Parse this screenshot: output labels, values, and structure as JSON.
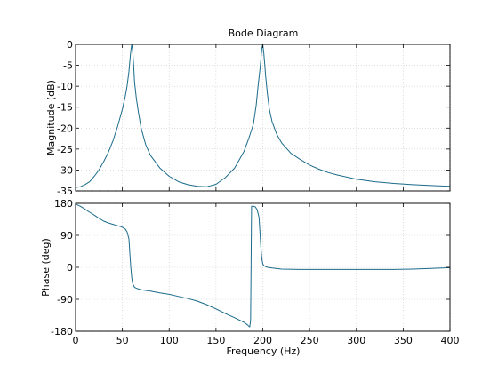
{
  "chart_data": {
    "type": "line",
    "title": "Bode Diagram",
    "xlabel": "Frequency  (Hz)",
    "xlim": [
      0,
      400
    ],
    "x_ticks": [
      0,
      50,
      100,
      150,
      200,
      250,
      300,
      350,
      400
    ],
    "x_tick_labels": [
      "0",
      "50",
      "100",
      "150",
      "200",
      "250",
      "300",
      "350",
      "400"
    ],
    "grid": true,
    "line_color": "#1a6b8a",
    "subplots": [
      {
        "ylabel": "Magnitude (dB)",
        "ylim": [
          -35,
          0
        ],
        "y_ticks": [
          0,
          -5,
          -10,
          -15,
          -20,
          -25,
          -30,
          -35
        ],
        "y_tick_labels": [
          "0",
          "-5",
          "-10",
          "-15",
          "-20",
          "-25",
          "-30",
          "-35"
        ],
        "series": [
          {
            "x": [
              0,
              5,
              10,
              15,
              20,
              25,
              30,
              35,
              40,
              45,
              50,
              53,
              55,
              57,
              58,
              59,
              60,
              61,
              62,
              63,
              65,
              67,
              70,
              75,
              80,
              90,
              100,
              110,
              120,
              130,
              140,
              150,
              160,
              170,
              180,
              185,
              190,
              193,
              195,
              197,
              198,
              199,
              200,
              201,
              202,
              203,
              205,
              207,
              210,
              215,
              220,
              230,
              240,
              250,
              260,
              270,
              280,
              300,
              320,
              340,
              360,
              380,
              400
            ],
            "y": [
              -34.2,
              -34.0,
              -33.5,
              -32.8,
              -31.5,
              -30.0,
              -28.0,
              -25.8,
              -23.0,
              -19.5,
              -15.5,
              -12.5,
              -10.0,
              -6.5,
              -4.0,
              -1.5,
              0,
              -1.5,
              -5.0,
              -9.0,
              -13.0,
              -16.0,
              -20.0,
              -24.0,
              -26.5,
              -29.5,
              -31.5,
              -32.8,
              -33.5,
              -33.9,
              -34.0,
              -33.4,
              -31.8,
              -29.5,
              -25.5,
              -22.5,
              -19.0,
              -14.5,
              -10.0,
              -6.0,
              -3.5,
              -1.0,
              0,
              -2.0,
              -4.5,
              -7.5,
              -12.0,
              -15.5,
              -18.5,
              -21.5,
              -23.5,
              -26.0,
              -27.5,
              -28.8,
              -29.8,
              -30.6,
              -31.2,
              -32.2,
              -32.8,
              -33.2,
              -33.5,
              -33.7,
              -33.9
            ]
          }
        ]
      },
      {
        "ylabel": "Phase (deg)",
        "ylim": [
          -180,
          180
        ],
        "y_ticks": [
          180,
          90,
          0,
          -90,
          -180
        ],
        "y_tick_labels": [
          "180",
          "90",
          "0",
          "-90",
          "-180"
        ],
        "series": [
          {
            "x": [
              0,
              5,
              10,
              15,
              20,
              25,
              30,
              35,
              40,
              45,
              50,
              53,
              55,
              57,
              58,
              59,
              60,
              61,
              62,
              63,
              65,
              70,
              80,
              90,
              100,
              110,
              120,
              130,
              140,
              150,
              160,
              170,
              180,
              184,
              186,
              187,
              188,
              190,
              192,
              194,
              196,
              197,
              198,
              199,
              200,
              201,
              203,
              205,
              210,
              220,
              240,
              260,
              280,
              300,
              320,
              340,
              360,
              380,
              400
            ],
            "y": [
              178,
              172,
              164,
              155,
              147,
              138,
              130,
              125,
              121,
              117,
              113,
              108,
              100,
              80,
              40,
              0,
              -30,
              -45,
              -52,
              -56,
              -59,
              -63,
              -67,
              -72,
              -76,
              -82,
              -88,
              -95,
              -105,
              -117,
              -130,
              -142,
              -155,
              -163,
              -168,
              -150,
              172,
              172,
              170,
              162,
              140,
              100,
              55,
              25,
              10,
              5,
              2,
              0,
              -2,
              -5,
              -6,
              -6,
              -6,
              -6,
              -6,
              -6,
              -5,
              -3,
              -1
            ]
          }
        ]
      }
    ]
  }
}
